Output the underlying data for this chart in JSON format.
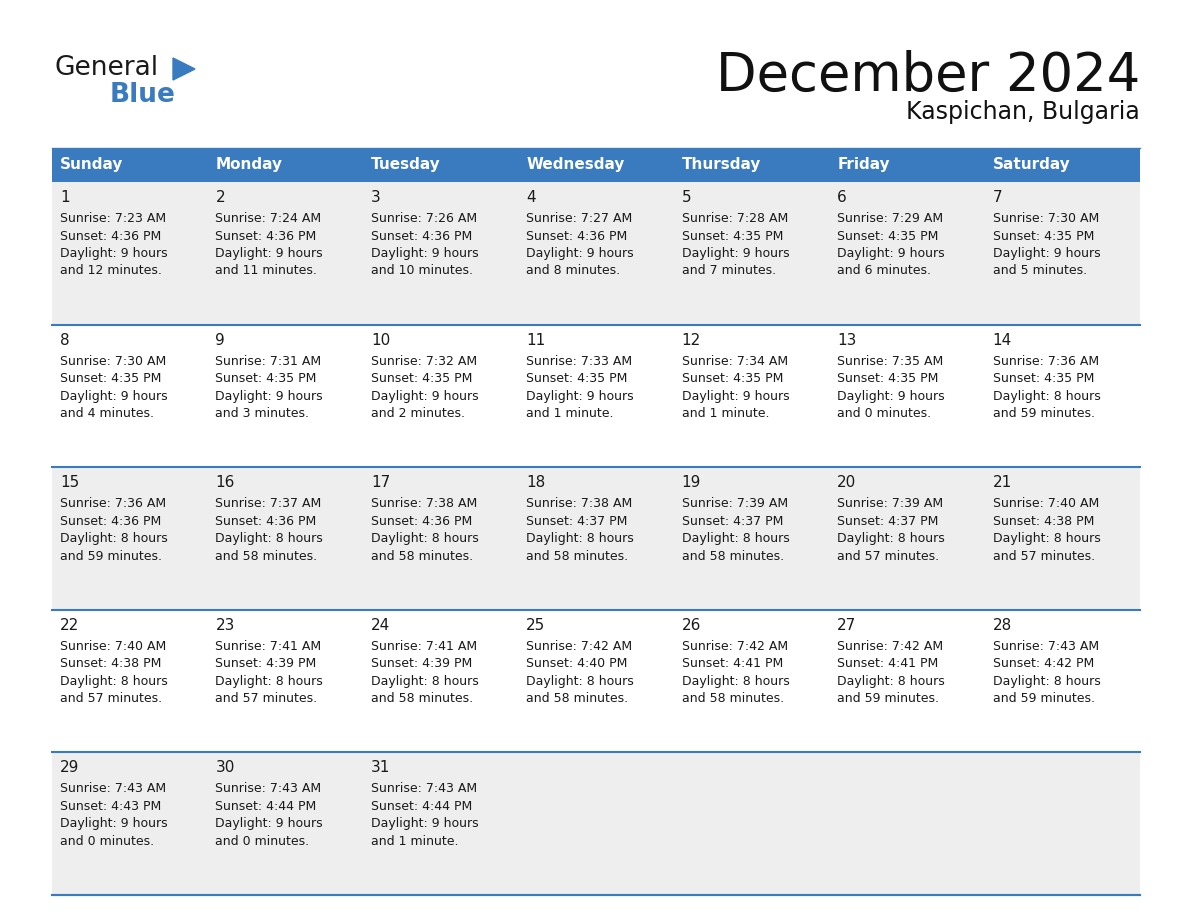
{
  "title": "December 2024",
  "subtitle": "Kaspichan, Bulgaria",
  "header_color": "#3a7bbf",
  "header_text_color": "#ffffff",
  "cell_bg_colors": [
    "#eeeeee",
    "#ffffff"
  ],
  "days_of_week": [
    "Sunday",
    "Monday",
    "Tuesday",
    "Wednesday",
    "Thursday",
    "Friday",
    "Saturday"
  ],
  "weeks": [
    [
      {
        "day": "1",
        "sunrise": "7:23 AM",
        "sunset": "4:36 PM",
        "daylight_h": "9 hours",
        "daylight_m": "and 12 minutes."
      },
      {
        "day": "2",
        "sunrise": "7:24 AM",
        "sunset": "4:36 PM",
        "daylight_h": "9 hours",
        "daylight_m": "and 11 minutes."
      },
      {
        "day": "3",
        "sunrise": "7:26 AM",
        "sunset": "4:36 PM",
        "daylight_h": "9 hours",
        "daylight_m": "and 10 minutes."
      },
      {
        "day": "4",
        "sunrise": "7:27 AM",
        "sunset": "4:36 PM",
        "daylight_h": "9 hours",
        "daylight_m": "and 8 minutes."
      },
      {
        "day": "5",
        "sunrise": "7:28 AM",
        "sunset": "4:35 PM",
        "daylight_h": "9 hours",
        "daylight_m": "and 7 minutes."
      },
      {
        "day": "6",
        "sunrise": "7:29 AM",
        "sunset": "4:35 PM",
        "daylight_h": "9 hours",
        "daylight_m": "and 6 minutes."
      },
      {
        "day": "7",
        "sunrise": "7:30 AM",
        "sunset": "4:35 PM",
        "daylight_h": "9 hours",
        "daylight_m": "and 5 minutes."
      }
    ],
    [
      {
        "day": "8",
        "sunrise": "7:30 AM",
        "sunset": "4:35 PM",
        "daylight_h": "9 hours",
        "daylight_m": "and 4 minutes."
      },
      {
        "day": "9",
        "sunrise": "7:31 AM",
        "sunset": "4:35 PM",
        "daylight_h": "9 hours",
        "daylight_m": "and 3 minutes."
      },
      {
        "day": "10",
        "sunrise": "7:32 AM",
        "sunset": "4:35 PM",
        "daylight_h": "9 hours",
        "daylight_m": "and 2 minutes."
      },
      {
        "day": "11",
        "sunrise": "7:33 AM",
        "sunset": "4:35 PM",
        "daylight_h": "9 hours",
        "daylight_m": "and 1 minute."
      },
      {
        "day": "12",
        "sunrise": "7:34 AM",
        "sunset": "4:35 PM",
        "daylight_h": "9 hours",
        "daylight_m": "and 1 minute."
      },
      {
        "day": "13",
        "sunrise": "7:35 AM",
        "sunset": "4:35 PM",
        "daylight_h": "9 hours",
        "daylight_m": "and 0 minutes."
      },
      {
        "day": "14",
        "sunrise": "7:36 AM",
        "sunset": "4:35 PM",
        "daylight_h": "8 hours",
        "daylight_m": "and 59 minutes."
      }
    ],
    [
      {
        "day": "15",
        "sunrise": "7:36 AM",
        "sunset": "4:36 PM",
        "daylight_h": "8 hours",
        "daylight_m": "and 59 minutes."
      },
      {
        "day": "16",
        "sunrise": "7:37 AM",
        "sunset": "4:36 PM",
        "daylight_h": "8 hours",
        "daylight_m": "and 58 minutes."
      },
      {
        "day": "17",
        "sunrise": "7:38 AM",
        "sunset": "4:36 PM",
        "daylight_h": "8 hours",
        "daylight_m": "and 58 minutes."
      },
      {
        "day": "18",
        "sunrise": "7:38 AM",
        "sunset": "4:37 PM",
        "daylight_h": "8 hours",
        "daylight_m": "and 58 minutes."
      },
      {
        "day": "19",
        "sunrise": "7:39 AM",
        "sunset": "4:37 PM",
        "daylight_h": "8 hours",
        "daylight_m": "and 58 minutes."
      },
      {
        "day": "20",
        "sunrise": "7:39 AM",
        "sunset": "4:37 PM",
        "daylight_h": "8 hours",
        "daylight_m": "and 57 minutes."
      },
      {
        "day": "21",
        "sunrise": "7:40 AM",
        "sunset": "4:38 PM",
        "daylight_h": "8 hours",
        "daylight_m": "and 57 minutes."
      }
    ],
    [
      {
        "day": "22",
        "sunrise": "7:40 AM",
        "sunset": "4:38 PM",
        "daylight_h": "8 hours",
        "daylight_m": "and 57 minutes."
      },
      {
        "day": "23",
        "sunrise": "7:41 AM",
        "sunset": "4:39 PM",
        "daylight_h": "8 hours",
        "daylight_m": "and 57 minutes."
      },
      {
        "day": "24",
        "sunrise": "7:41 AM",
        "sunset": "4:39 PM",
        "daylight_h": "8 hours",
        "daylight_m": "and 58 minutes."
      },
      {
        "day": "25",
        "sunrise": "7:42 AM",
        "sunset": "4:40 PM",
        "daylight_h": "8 hours",
        "daylight_m": "and 58 minutes."
      },
      {
        "day": "26",
        "sunrise": "7:42 AM",
        "sunset": "4:41 PM",
        "daylight_h": "8 hours",
        "daylight_m": "and 58 minutes."
      },
      {
        "day": "27",
        "sunrise": "7:42 AM",
        "sunset": "4:41 PM",
        "daylight_h": "8 hours",
        "daylight_m": "and 59 minutes."
      },
      {
        "day": "28",
        "sunrise": "7:43 AM",
        "sunset": "4:42 PM",
        "daylight_h": "8 hours",
        "daylight_m": "and 59 minutes."
      }
    ],
    [
      {
        "day": "29",
        "sunrise": "7:43 AM",
        "sunset": "4:43 PM",
        "daylight_h": "9 hours",
        "daylight_m": "and 0 minutes."
      },
      {
        "day": "30",
        "sunrise": "7:43 AM",
        "sunset": "4:44 PM",
        "daylight_h": "9 hours",
        "daylight_m": "and 0 minutes."
      },
      {
        "day": "31",
        "sunrise": "7:43 AM",
        "sunset": "4:44 PM",
        "daylight_h": "9 hours",
        "daylight_m": "and 1 minute."
      },
      null,
      null,
      null,
      null
    ]
  ],
  "logo_color_general": "#1a1a1a",
  "logo_color_blue": "#3a7bbf",
  "logo_triangle_color": "#3a7bbf",
  "title_fontsize": 38,
  "subtitle_fontsize": 17,
  "header_fontsize": 11,
  "day_num_fontsize": 11,
  "cell_text_fontsize": 9
}
